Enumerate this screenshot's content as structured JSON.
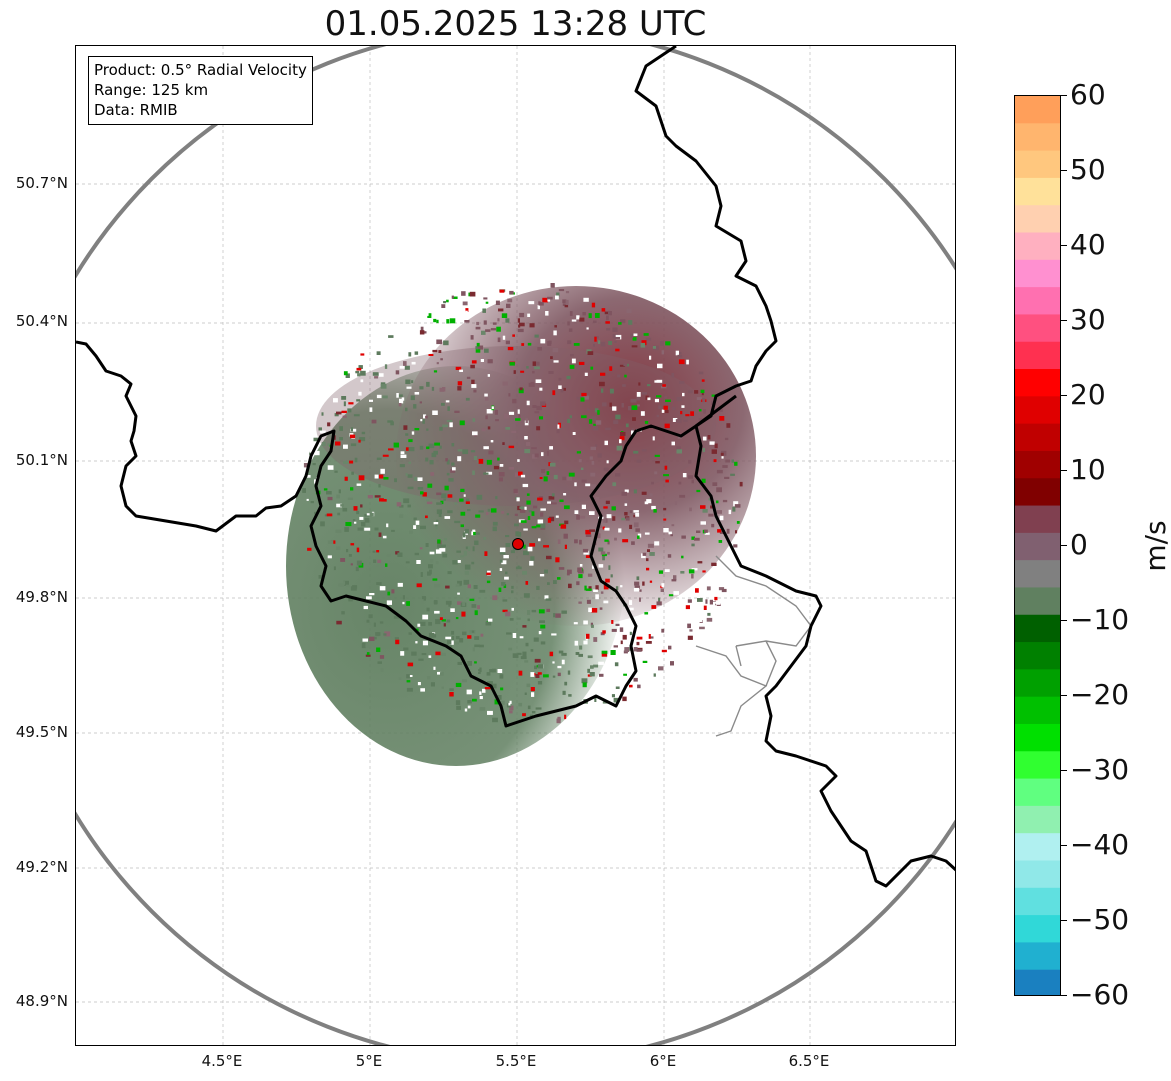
{
  "title": "01.05.2025 13:28 UTC",
  "info": {
    "product": "Product: 0.5° Radial Velocity",
    "range": "Range: 125 km",
    "data": "Data: RMIB"
  },
  "axes": {
    "lat_ticks": [
      "50.7°N",
      "50.4°N",
      "50.1°N",
      "49.8°N",
      "49.5°N",
      "49.2°N",
      "48.9°N"
    ],
    "lon_ticks": [
      "4.5°E",
      "5°E",
      "5.5°E",
      "6°E",
      "6.5°E"
    ]
  },
  "colorbar": {
    "unit": "m/s",
    "ticks": [
      "60",
      "50",
      "40",
      "30",
      "20",
      "10",
      "0",
      "−10",
      "−20",
      "−30",
      "−40",
      "−50",
      "−60"
    ],
    "range": [
      -60,
      60
    ],
    "stops": [
      "#ff9f5a",
      "#ffb56e",
      "#ffc77e",
      "#ffe19a",
      "#ffd0b0",
      "#ffb0c0",
      "#ff90d0",
      "#ff70b0",
      "#ff5080",
      "#ff3050",
      "#ff0000",
      "#e00000",
      "#c00000",
      "#a00000",
      "#800000",
      "#804050",
      "#806070",
      "#808080",
      "#608060",
      "#006000",
      "#008000",
      "#00a000",
      "#00c000",
      "#00e000",
      "#30ff30",
      "#60ff80",
      "#90f0b0",
      "#b0f0f0",
      "#90e8e8",
      "#60e0e0",
      "#30d8d8",
      "#20b0d0",
      "#1a80c0"
    ]
  },
  "colors": {
    "radar_ring": "#808080",
    "border_major": "#000000",
    "border_minor": "#8a8a8a",
    "radar_site": "#e00000",
    "approach_velocity": "#5d7a5d",
    "recede_velocity": "#7f5560"
  }
}
